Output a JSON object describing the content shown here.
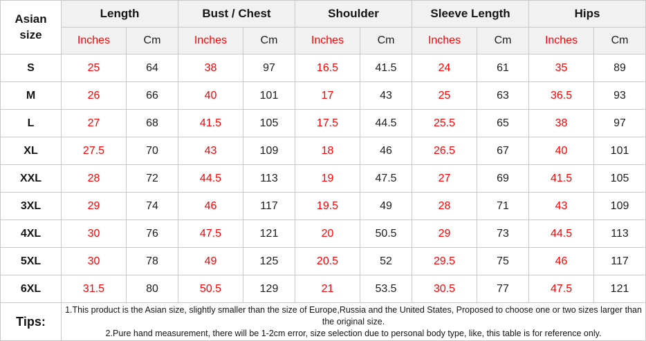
{
  "colors": {
    "inches_text": "#fe0000",
    "cm_text": "#1c1c1c",
    "header_bg": "#f1f1f1",
    "grid_border": "#c9c9c9"
  },
  "table": {
    "corner_header": "Asian\nsize",
    "groups": [
      {
        "label": "Length"
      },
      {
        "label": "Bust / Chest"
      },
      {
        "label": "Shoulder"
      },
      {
        "label": "Sleeve Length"
      },
      {
        "label": "Hips"
      }
    ],
    "unit_headers": {
      "inches": "Inches",
      "cm": "Cm"
    },
    "rows": [
      {
        "size": "S",
        "values": [
          "25",
          "64",
          "38",
          "97",
          "16.5",
          "41.5",
          "24",
          "61",
          "35",
          "89"
        ]
      },
      {
        "size": "M",
        "values": [
          "26",
          "66",
          "40",
          "101",
          "17",
          "43",
          "25",
          "63",
          "36.5",
          "93"
        ]
      },
      {
        "size": "L",
        "values": [
          "27",
          "68",
          "41.5",
          "105",
          "17.5",
          "44.5",
          "25.5",
          "65",
          "38",
          "97"
        ]
      },
      {
        "size": "XL",
        "values": [
          "27.5",
          "70",
          "43",
          "109",
          "18",
          "46",
          "26.5",
          "67",
          "40",
          "101"
        ]
      },
      {
        "size": "XXL",
        "values": [
          "28",
          "72",
          "44.5",
          "113",
          "19",
          "47.5",
          "27",
          "69",
          "41.5",
          "105"
        ]
      },
      {
        "size": "3XL",
        "values": [
          "29",
          "74",
          "46",
          "117",
          "19.5",
          "49",
          "28",
          "71",
          "43",
          "109"
        ]
      },
      {
        "size": "4XL",
        "values": [
          "30",
          "76",
          "47.5",
          "121",
          "20",
          "50.5",
          "29",
          "73",
          "44.5",
          "113"
        ]
      },
      {
        "size": "5XL",
        "values": [
          "30",
          "78",
          "49",
          "125",
          "20.5",
          "52",
          "29.5",
          "75",
          "46",
          "117"
        ]
      },
      {
        "size": "6XL",
        "values": [
          "31.5",
          "80",
          "50.5",
          "129",
          "21",
          "53.5",
          "30.5",
          "77",
          "47.5",
          "121"
        ]
      }
    ],
    "tips": {
      "label": "Tips:",
      "lines": [
        "1.This product is the Asian size, slightly smaller than the size of Europe,Russia and the United States, Proposed to choose one or two sizes larger than the original size.",
        "2.Pure hand measurement, there will be 1-2cm error, size selection due to personal body type, like, this table is for reference only."
      ]
    }
  }
}
